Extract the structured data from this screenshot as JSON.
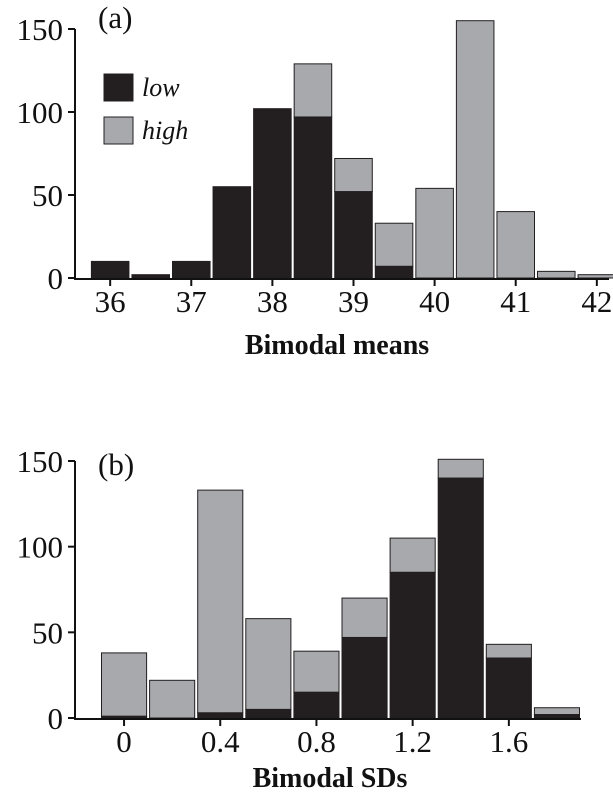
{
  "colors": {
    "low": "#231f20",
    "high": "#a7a9ac",
    "outline": "#231f20"
  },
  "legend": [
    {
      "key": "low",
      "label": "low"
    },
    {
      "key": "high",
      "label": "high"
    }
  ],
  "chart_data": [
    {
      "panel_label": "(a)",
      "type": "bar",
      "stacked": true,
      "xlabel": "Bimodal means",
      "ylabel": "",
      "xlim": [
        35.85,
        42.15
      ],
      "ylim": [
        0,
        155
      ],
      "x_ticks": [
        "36",
        "37",
        "38",
        "39",
        "40",
        "41",
        "42"
      ],
      "y_ticks": [
        "0",
        "50",
        "100",
        "150"
      ],
      "bin_width": 0.5,
      "x": [
        36,
        36.5,
        37,
        37.5,
        38,
        38.5,
        39,
        39.5,
        40,
        40.5,
        41,
        41.5,
        42
      ],
      "series": [
        {
          "name": "low",
          "values": [
            10,
            2,
            10,
            55,
            102,
            97,
            52,
            7,
            0,
            0,
            0,
            0,
            0
          ]
        },
        {
          "name": "high",
          "values": [
            0,
            0,
            0,
            0,
            0,
            32,
            20,
            26,
            54,
            155,
            40,
            4,
            2
          ]
        }
      ],
      "grid": false
    },
    {
      "panel_label": "(b)",
      "type": "bar",
      "stacked": true,
      "xlabel": "Bimodal SDs",
      "ylabel": "",
      "xlim": [
        -0.1,
        1.9
      ],
      "ylim": [
        0,
        155
      ],
      "x_ticks": [
        "0",
        "0.4",
        "0.8",
        "1.2",
        "1.6"
      ],
      "y_ticks": [
        "0",
        "50",
        "100",
        "150"
      ],
      "bin_width": 0.2,
      "x": [
        0,
        0.2,
        0.4,
        0.6,
        0.8,
        1.0,
        1.2,
        1.4,
        1.6,
        1.8
      ],
      "series": [
        {
          "name": "low",
          "values": [
            1,
            0,
            3,
            5,
            15,
            47,
            85,
            140,
            35,
            2
          ]
        },
        {
          "name": "high",
          "values": [
            37,
            22,
            130,
            53,
            24,
            23,
            20,
            11,
            8,
            4
          ]
        }
      ],
      "grid": false
    }
  ]
}
